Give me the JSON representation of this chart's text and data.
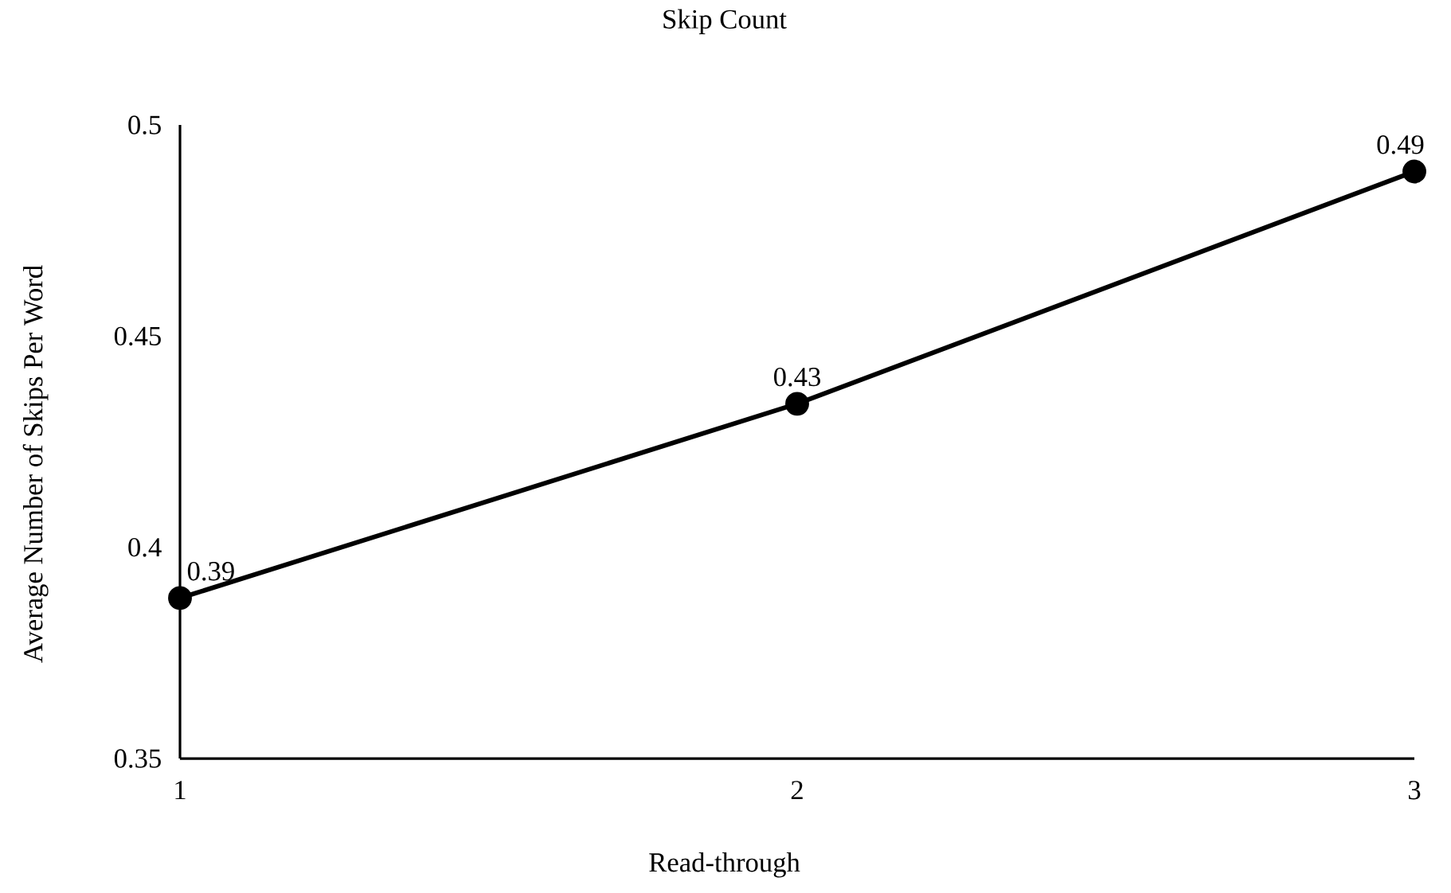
{
  "chart_data": {
    "type": "line",
    "title": "Skip Count",
    "xlabel": "Read-through",
    "ylabel": "Average Number of Skips Per Word",
    "categories": [
      "1",
      "2",
      "3"
    ],
    "values": [
      0.388,
      0.434,
      0.489
    ],
    "value_labels": [
      "0.39",
      "0.43",
      "0.49"
    ],
    "color": "#000000",
    "marker": "circle",
    "ylim": [
      0.35,
      0.5
    ],
    "yticks": [
      0.35,
      0.4,
      0.45,
      0.5
    ]
  }
}
